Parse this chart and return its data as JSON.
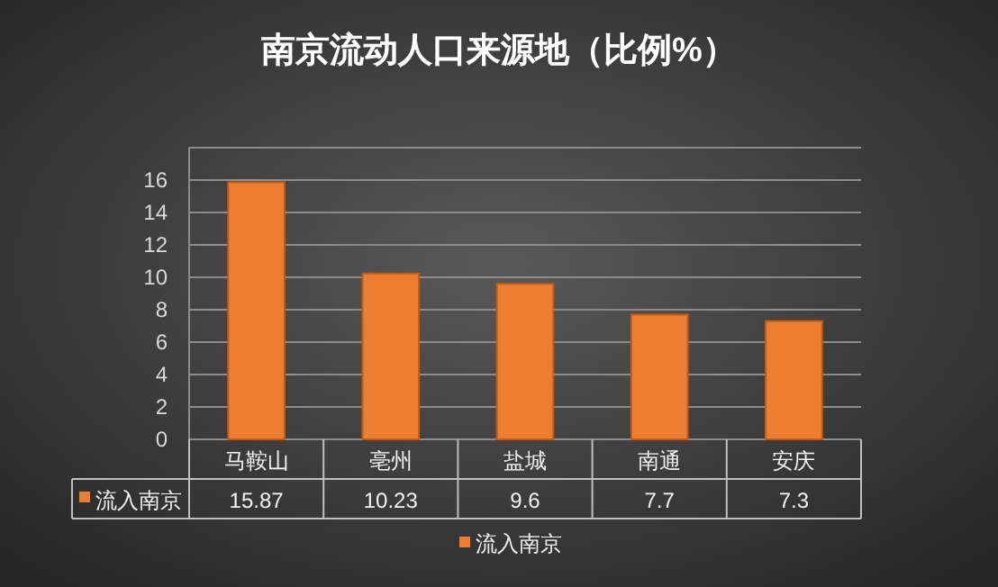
{
  "chart_data": {
    "type": "bar",
    "title": "南京流动人口来源地（比例%）",
    "categories": [
      "马鞍山",
      "亳州",
      "盐城",
      "南通",
      "安庆"
    ],
    "series": [
      {
        "name": "流入南京",
        "color": "#ed7d31",
        "values": [
          15.87,
          10.23,
          9.6,
          7.7,
          7.3
        ]
      }
    ],
    "ylim": [
      0,
      18
    ],
    "yticks": [
      0,
      2,
      4,
      6,
      8,
      10,
      12,
      14,
      16,
      {
        "value": 18,
        "label": null
      }
    ],
    "grid": "y",
    "legend": "bottom",
    "data_labels": true
  }
}
